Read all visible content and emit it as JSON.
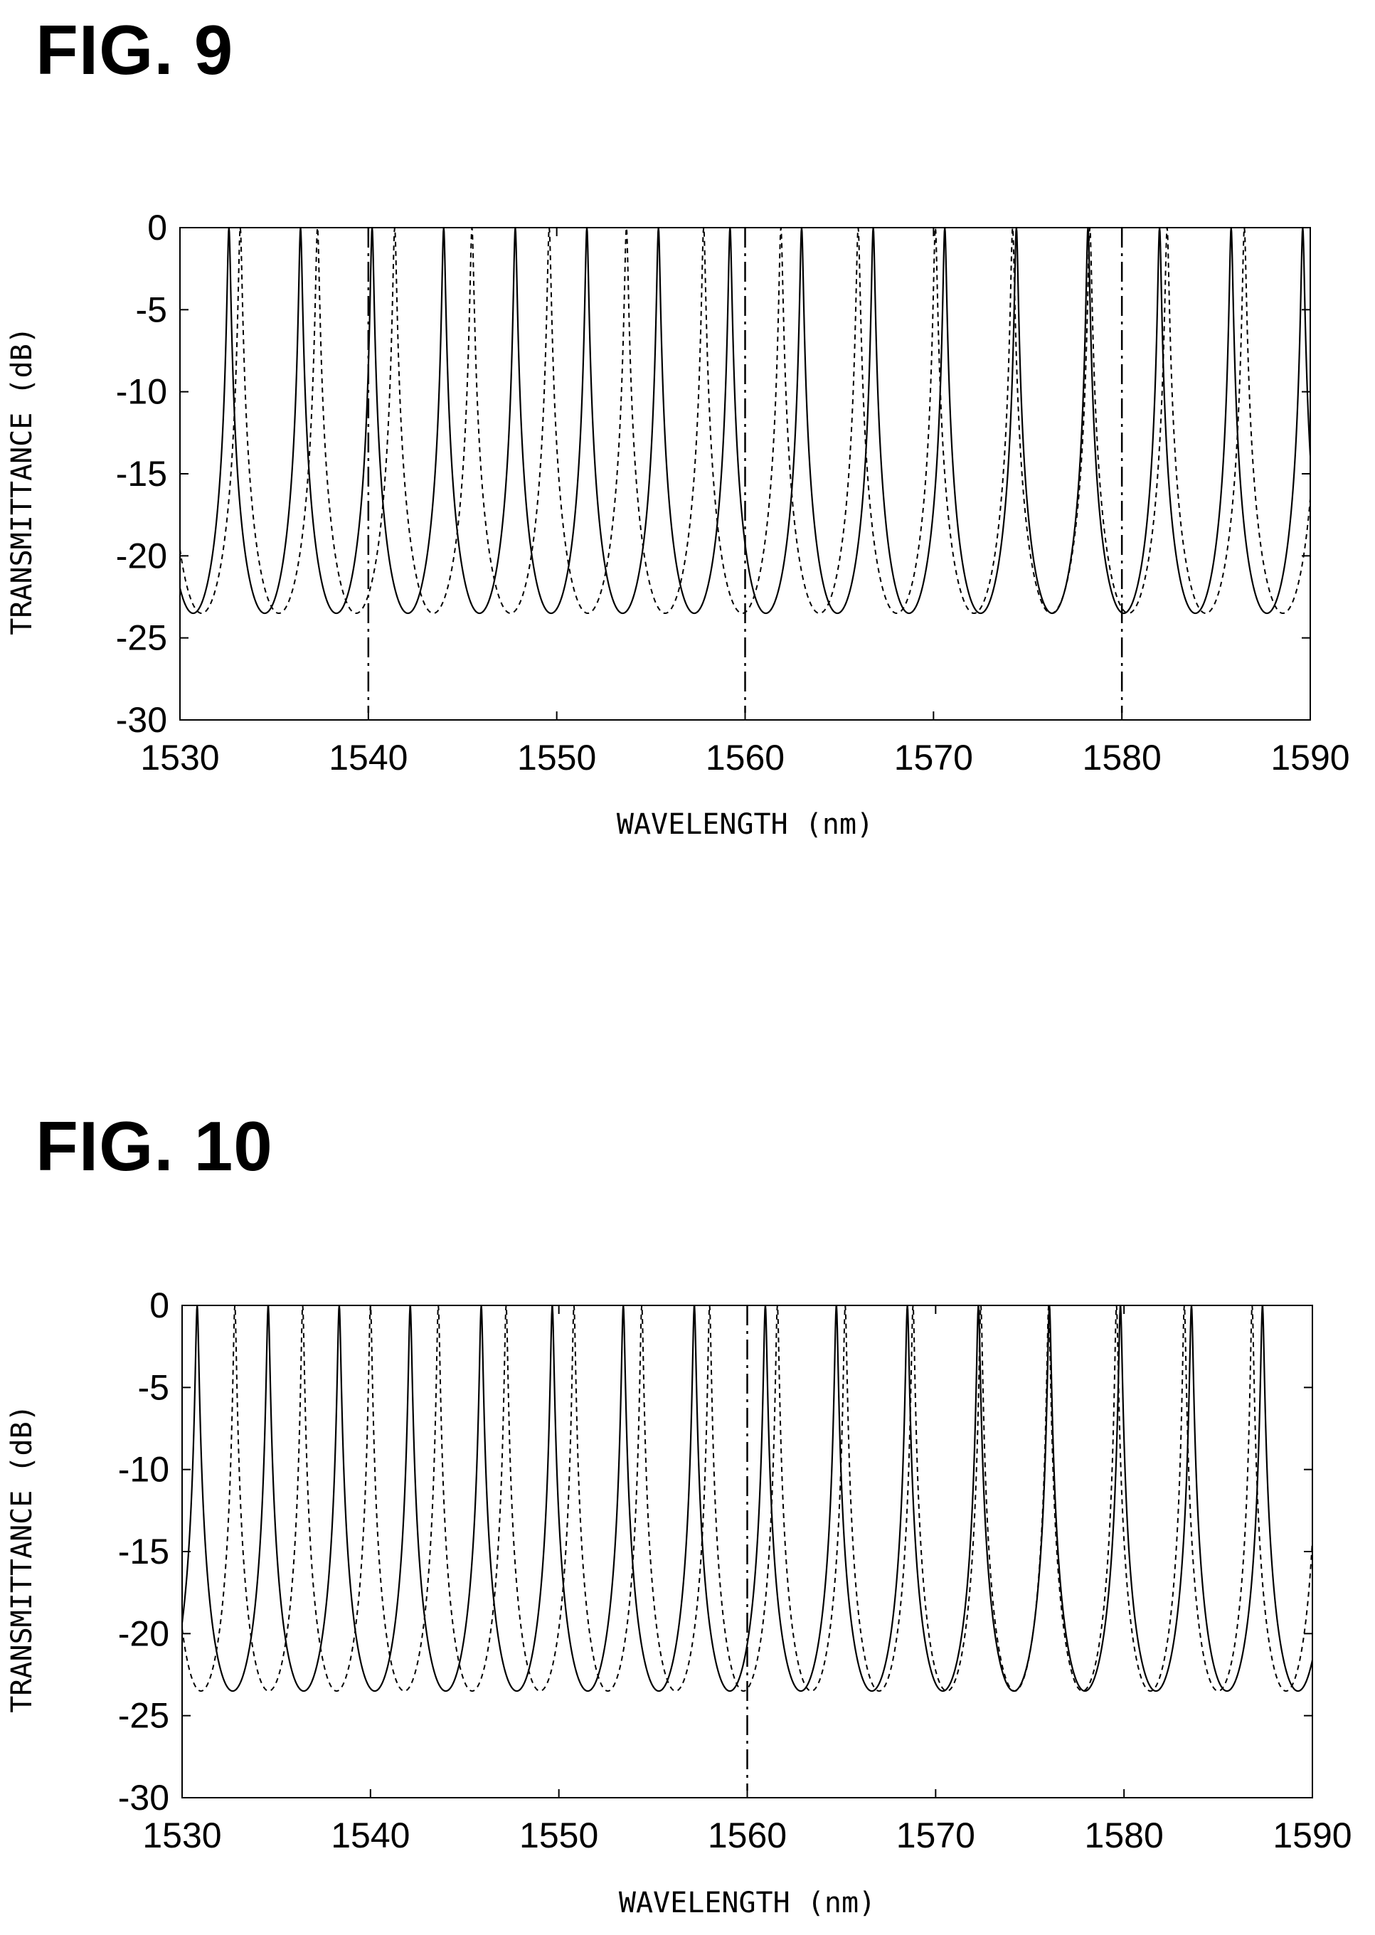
{
  "figures": [
    {
      "label": "FIG. 9"
    },
    {
      "label": "FIG. 10"
    }
  ],
  "chart_data": [
    {
      "type": "line",
      "title": "FIG. 9",
      "xlabel": "WAVELENGTH (nm)",
      "ylabel": "TRANSMITTANCE (dB)",
      "xlim": [
        1530,
        1590
      ],
      "ylim": [
        -30,
        0
      ],
      "x_ticks": [
        "1530",
        "1540",
        "1550",
        "1560",
        "1570",
        "1580",
        "1590"
      ],
      "y_ticks": [
        "0",
        "-5",
        "-10",
        "-15",
        "-20",
        "-25",
        "-30"
      ],
      "grid": false,
      "series": [
        {
          "style": "solid",
          "fsr_nm": 3.8,
          "first_peak_nm": 1532.6,
          "peak_dB": 0,
          "min_dB": -23.5
        },
        {
          "style": "dashed",
          "fsr_nm": 4.1,
          "first_peak_nm": 1533.2,
          "peak_dB": 0,
          "min_dB": -23.5
        }
      ],
      "reference_lines_nm": [
        1540,
        1560,
        1580
      ]
    },
    {
      "type": "line",
      "title": "FIG. 10",
      "xlabel": "WAVELENGTH (nm)",
      "ylabel": "TRANSMITTANCE (dB)",
      "xlim": [
        1530,
        1590
      ],
      "ylim": [
        -30,
        0
      ],
      "x_ticks": [
        "1530",
        "1540",
        "1550",
        "1560",
        "1570",
        "1580",
        "1590"
      ],
      "y_ticks": [
        "0",
        "-5",
        "-10",
        "-15",
        "-20",
        "-25",
        "-30"
      ],
      "grid": false,
      "series": [
        {
          "style": "solid",
          "fsr_nm": 3.77,
          "first_peak_nm": 1530.8,
          "peak_dB": 0,
          "min_dB": -23.5
        },
        {
          "style": "dashed",
          "fsr_nm": 3.6,
          "first_peak_nm": 1532.8,
          "peak_dB": 0,
          "min_dB": -23.5
        }
      ],
      "reference_lines_nm": [
        1560
      ]
    }
  ]
}
